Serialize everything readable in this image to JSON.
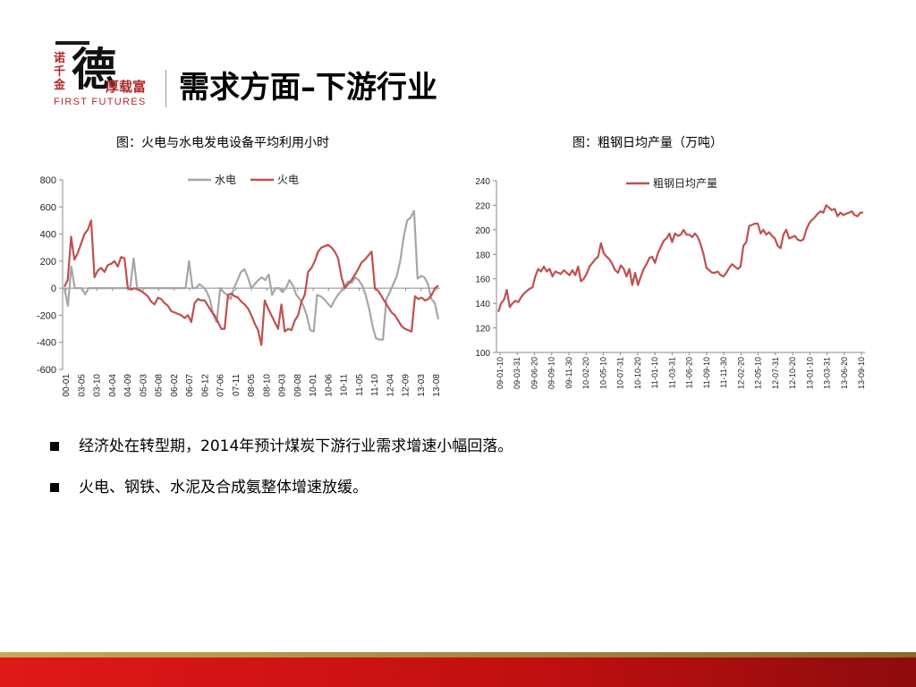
{
  "logo": {
    "side_chars": "诺千金",
    "main_char": "德",
    "tagline": "厚载富",
    "english": "FIRST FUTURES"
  },
  "page": {
    "title": "需求方面–下游行业"
  },
  "bullets": [
    "经济处在转型期，2014年预计煤炭下游行业需求增速小幅回落。",
    "火电、钢铁、水泥及合成氨整体增速放缓。"
  ],
  "chart_data": [
    {
      "type": "line",
      "title": "图：火电与水电发电设备平均利用小时",
      "legend_position": "top-center",
      "ylim": [
        -600,
        800
      ],
      "y_ticks": [
        "800",
        "600",
        "400",
        "200",
        "0",
        "-200",
        "-400",
        "-600"
      ],
      "x_tick_labels": [
        "00-01",
        "03-05",
        "03-10",
        "04-04",
        "04-09",
        "05-03",
        "05-08",
        "06-02",
        "06-07",
        "06-12",
        "07-06",
        "07-11",
        "08-05",
        "08-10",
        "09-03",
        "09-08",
        "10-01",
        "10-06",
        "10-11",
        "11-05",
        "11-10",
        "12-04",
        "12-09",
        "13-03",
        "13-08"
      ],
      "series": [
        {
          "name": "水电",
          "color": "#a6a6a6",
          "values": [
            0,
            -130,
            160,
            0,
            0,
            0,
            -45,
            0,
            0,
            0,
            0,
            0,
            0,
            0,
            0,
            0,
            0,
            0,
            0,
            0,
            220,
            0,
            0,
            0,
            0,
            0,
            0,
            0,
            0,
            0,
            0,
            0,
            0,
            0,
            0,
            0,
            200,
            0,
            0,
            30,
            10,
            -20,
            -80,
            -200,
            -250,
            0,
            -30,
            -50,
            -80,
            0,
            60,
            120,
            140,
            80,
            0,
            30,
            60,
            80,
            60,
            100,
            -50,
            0,
            0,
            -30,
            0,
            60,
            20,
            -50,
            -80,
            -130,
            -200,
            -310,
            -320,
            -50,
            -60,
            -80,
            -110,
            -140,
            -90,
            -50,
            -20,
            20,
            50,
            40,
            80,
            60,
            20,
            -50,
            -150,
            -280,
            -370,
            -380,
            -380,
            -80,
            -30,
            30,
            90,
            200,
            380,
            500,
            520,
            570,
            70,
            90,
            80,
            30,
            -80,
            -110,
            -230
          ]
        },
        {
          "name": "火电",
          "color": "#c0504d",
          "values": [
            10,
            60,
            380,
            210,
            260,
            330,
            400,
            430,
            500,
            80,
            130,
            150,
            120,
            170,
            180,
            200,
            160,
            230,
            220,
            0,
            -10,
            0,
            -10,
            -20,
            -40,
            -60,
            -100,
            -120,
            -70,
            -80,
            -110,
            -130,
            -170,
            -180,
            -190,
            -200,
            -220,
            -200,
            -250,
            -110,
            -80,
            -90,
            -90,
            -130,
            -170,
            -200,
            -250,
            -300,
            -300,
            -50,
            -40,
            -60,
            -70,
            -100,
            -120,
            -150,
            -200,
            -260,
            -310,
            -420,
            -90,
            -150,
            -200,
            -250,
            -300,
            -120,
            -320,
            -300,
            -310,
            -240,
            -200,
            -100,
            -50,
            120,
            150,
            200,
            270,
            300,
            310,
            320,
            300,
            270,
            220,
            80,
            0,
            30,
            60,
            100,
            140,
            190,
            210,
            240,
            270,
            0,
            -20,
            -60,
            -100,
            -140,
            -180,
            -200,
            -240,
            -280,
            -300,
            -310,
            -320,
            -60,
            -80,
            -70,
            -90,
            -80,
            -50,
            0,
            20
          ]
        }
      ]
    },
    {
      "type": "line",
      "title": "图：粗钢日均产量（万吨）",
      "legend_position": "top-left",
      "ylim": [
        100,
        240
      ],
      "y_ticks": [
        "240",
        "220",
        "200",
        "180",
        "160",
        "140",
        "120",
        "100"
      ],
      "x_tick_labels": [
        "09-01-10",
        "09-03-31",
        "09-06-20",
        "09-09-10",
        "09-11-30",
        "10-02-20",
        "10-05-10",
        "10-07-31",
        "10-10-20",
        "11-01-10",
        "11-03-31",
        "11-06-20",
        "11-09-10",
        "11-11-30",
        "12-02-20",
        "12-05-10",
        "12-07-31",
        "12-10-20",
        "13-01-10",
        "13-03-31",
        "13-06-20",
        "13-09-10"
      ],
      "series": [
        {
          "name": "粗钢日均产量",
          "color": "#c0504d",
          "values": [
            133,
            140,
            143,
            151,
            137,
            140,
            142,
            141,
            145,
            148,
            150,
            152,
            153,
            162,
            168,
            166,
            170,
            166,
            168,
            162,
            166,
            165,
            164,
            167,
            165,
            163,
            167,
            163,
            170,
            158,
            160,
            164,
            170,
            173,
            176,
            178,
            189,
            181,
            178,
            176,
            172,
            167,
            165,
            171,
            168,
            162,
            168,
            155,
            165,
            155,
            162,
            168,
            172,
            177,
            178,
            173,
            181,
            186,
            191,
            193,
            197,
            190,
            197,
            195,
            196,
            200,
            196,
            196,
            194,
            197,
            194,
            188,
            180,
            169,
            167,
            165,
            165,
            166,
            163,
            162,
            165,
            169,
            172,
            170,
            168,
            170,
            187,
            190,
            203,
            204,
            205,
            205,
            197,
            200,
            196,
            198,
            195,
            193,
            187,
            185,
            196,
            200,
            193,
            194,
            195,
            192,
            191,
            192,
            200,
            205,
            208,
            210,
            213,
            215,
            214,
            220,
            218,
            216,
            217,
            211,
            214,
            212,
            213,
            214,
            215,
            212,
            211,
            214,
            214
          ]
        }
      ]
    }
  ]
}
